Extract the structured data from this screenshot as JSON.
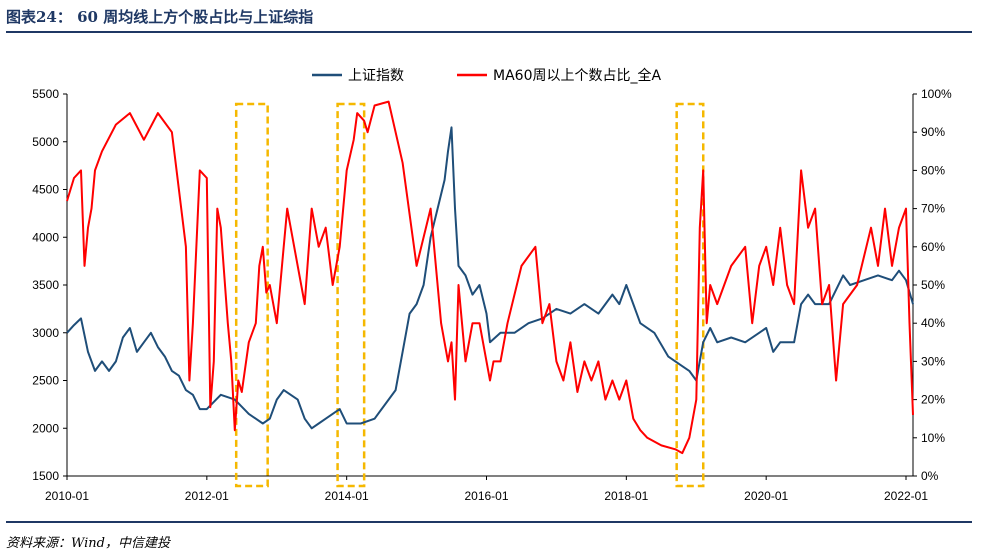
{
  "header": {
    "title": "图表24： 60 周均线上方个股占比与上证综指"
  },
  "footer": {
    "source": "资料来源：Wind，中信建投"
  },
  "colors": {
    "index": "#1f4e79",
    "ratio": "#ff0000",
    "highlight": "#f5b800",
    "rule": "#1f3864"
  },
  "chart_data": {
    "type": "line",
    "title": "60 周均线上方个股占比与上证综指",
    "legend_position": "top-center",
    "x_tick_labels": [
      "2010-01",
      "2012-01",
      "2014-01",
      "2016-01",
      "2018-01",
      "2020-01",
      "2022-01"
    ],
    "x_range": [
      2010.0,
      2022.1
    ],
    "left_axis": {
      "range": [
        1500,
        5500
      ],
      "ticks": [
        "1500",
        "2000",
        "2500",
        "3000",
        "3500",
        "4000",
        "4500",
        "5000",
        "5500"
      ]
    },
    "right_axis": {
      "range": [
        0,
        100
      ],
      "ticks": [
        "0%",
        "10%",
        "20%",
        "30%",
        "40%",
        "50%",
        "60%",
        "70%",
        "80%",
        "90%",
        "100%"
      ]
    },
    "highlight_ranges": [
      [
        2012.42,
        2012.87
      ],
      [
        2013.87,
        2014.25
      ],
      [
        2018.72,
        2019.1
      ]
    ],
    "series": [
      {
        "name": "上证指数",
        "axis": "left",
        "x": [
          2010.0,
          2010.1,
          2010.2,
          2010.3,
          2010.4,
          2010.5,
          2010.6,
          2010.7,
          2010.8,
          2010.9,
          2011.0,
          2011.1,
          2011.2,
          2011.3,
          2011.4,
          2011.5,
          2011.6,
          2011.7,
          2011.8,
          2011.9,
          2012.0,
          2012.2,
          2012.4,
          2012.6,
          2012.8,
          2012.9,
          2013.0,
          2013.1,
          2013.3,
          2013.4,
          2013.5,
          2013.6,
          2013.7,
          2013.9,
          2014.0,
          2014.2,
          2014.4,
          2014.5,
          2014.7,
          2014.8,
          2014.9,
          2015.0,
          2015.1,
          2015.2,
          2015.3,
          2015.4,
          2015.45,
          2015.5,
          2015.55,
          2015.6,
          2015.7,
          2015.8,
          2015.9,
          2016.0,
          2016.05,
          2016.2,
          2016.4,
          2016.6,
          2016.8,
          2017.0,
          2017.2,
          2017.4,
          2017.6,
          2017.8,
          2017.9,
          2018.0,
          2018.1,
          2018.2,
          2018.4,
          2018.6,
          2018.8,
          2018.9,
          2019.0,
          2019.1,
          2019.2,
          2019.3,
          2019.5,
          2019.7,
          2019.9,
          2020.0,
          2020.1,
          2020.2,
          2020.4,
          2020.5,
          2020.6,
          2020.7,
          2020.9,
          2021.1,
          2021.2,
          2021.4,
          2021.6,
          2021.8,
          2021.9,
          2022.0,
          2022.1
        ],
        "values": [
          3000,
          3080,
          3150,
          2800,
          2600,
          2700,
          2600,
          2700,
          2950,
          3050,
          2800,
          2900,
          3000,
          2850,
          2750,
          2600,
          2550,
          2400,
          2350,
          2200,
          2200,
          2350,
          2300,
          2150,
          2050,
          2100,
          2300,
          2400,
          2300,
          2100,
          2000,
          2050,
          2100,
          2200,
          2050,
          2050,
          2100,
          2200,
          2400,
          2800,
          3200,
          3300,
          3500,
          4000,
          4300,
          4600,
          4900,
          5150,
          4300,
          3700,
          3600,
          3400,
          3500,
          3200,
          2900,
          3000,
          3000,
          3100,
          3150,
          3250,
          3200,
          3300,
          3200,
          3400,
          3300,
          3500,
          3300,
          3100,
          3000,
          2750,
          2650,
          2600,
          2500,
          2900,
          3050,
          2900,
          2950,
          2900,
          3000,
          3050,
          2800,
          2900,
          2900,
          3300,
          3400,
          3300,
          3300,
          3600,
          3500,
          3550,
          3600,
          3550,
          3650,
          3550,
          3300
        ]
      },
      {
        "name": "MA60周以上个数占比_全A",
        "axis": "right",
        "x": [
          2010.0,
          2010.1,
          2010.2,
          2010.25,
          2010.3,
          2010.35,
          2010.4,
          2010.5,
          2010.7,
          2010.9,
          2011.1,
          2011.3,
          2011.5,
          2011.7,
          2011.75,
          2011.8,
          2011.9,
          2012.0,
          2012.05,
          2012.1,
          2012.15,
          2012.2,
          2012.3,
          2012.35,
          2012.4,
          2012.45,
          2012.5,
          2012.6,
          2012.7,
          2012.75,
          2012.8,
          2012.85,
          2012.9,
          2013.0,
          2013.1,
          2013.15,
          2013.2,
          2013.3,
          2013.4,
          2013.5,
          2013.6,
          2013.7,
          2013.8,
          2013.9,
          2014.0,
          2014.1,
          2014.15,
          2014.25,
          2014.3,
          2014.4,
          2014.6,
          2014.8,
          2015.0,
          2015.2,
          2015.35,
          2015.45,
          2015.5,
          2015.55,
          2015.6,
          2015.7,
          2015.8,
          2015.9,
          2016.0,
          2016.05,
          2016.1,
          2016.2,
          2016.3,
          2016.5,
          2016.7,
          2016.8,
          2016.9,
          2017.0,
          2017.1,
          2017.2,
          2017.3,
          2017.4,
          2017.5,
          2017.6,
          2017.7,
          2017.8,
          2017.9,
          2018.0,
          2018.1,
          2018.2,
          2018.3,
          2018.5,
          2018.7,
          2018.8,
          2018.9,
          2019.0,
          2019.05,
          2019.1,
          2019.15,
          2019.2,
          2019.3,
          2019.5,
          2019.7,
          2019.8,
          2019.9,
          2020.0,
          2020.1,
          2020.2,
          2020.3,
          2020.4,
          2020.5,
          2020.6,
          2020.7,
          2020.8,
          2020.9,
          2021.0,
          2021.1,
          2021.3,
          2021.5,
          2021.6,
          2021.7,
          2021.8,
          2021.9,
          2022.0,
          2022.05,
          2022.1
        ],
        "values": [
          72,
          78,
          80,
          55,
          65,
          70,
          80,
          85,
          92,
          95,
          88,
          95,
          90,
          60,
          25,
          40,
          80,
          78,
          18,
          30,
          70,
          65,
          40,
          30,
          12,
          25,
          22,
          35,
          40,
          55,
          60,
          48,
          50,
          40,
          60,
          70,
          65,
          55,
          45,
          70,
          60,
          65,
          50,
          60,
          80,
          88,
          95,
          93,
          90,
          97,
          98,
          82,
          55,
          70,
          40,
          30,
          35,
          20,
          50,
          30,
          40,
          40,
          30,
          25,
          30,
          30,
          40,
          55,
          60,
          40,
          45,
          30,
          25,
          35,
          22,
          30,
          25,
          30,
          20,
          25,
          20,
          25,
          15,
          12,
          10,
          8,
          7,
          6,
          10,
          20,
          65,
          80,
          40,
          50,
          45,
          55,
          60,
          40,
          55,
          60,
          50,
          65,
          50,
          45,
          80,
          65,
          70,
          45,
          50,
          25,
          45,
          50,
          65,
          55,
          70,
          55,
          65,
          70,
          40,
          16
        ]
      }
    ]
  }
}
